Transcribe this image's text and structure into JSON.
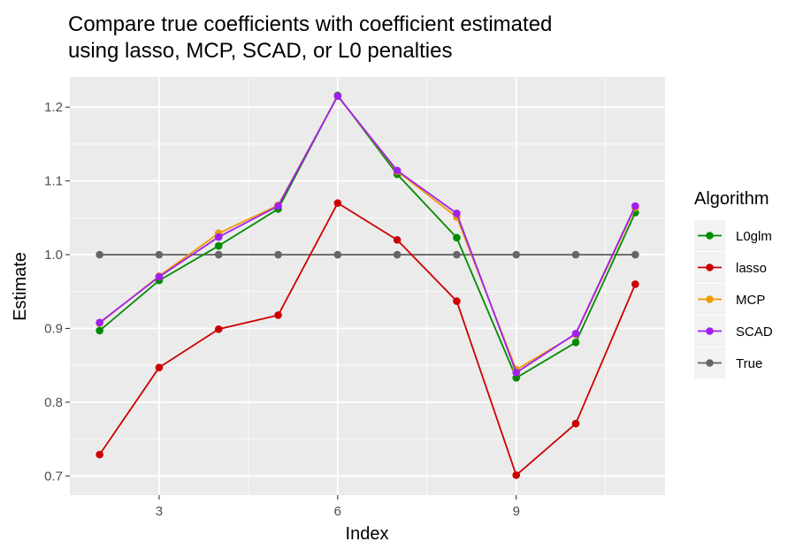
{
  "chart_data": {
    "type": "line",
    "title_lines": [
      "Compare true coefficients with coefficient estimated",
      "using lasso, MCP, SCAD, or L0 penalties"
    ],
    "xlabel": "Index",
    "ylabel": "Estimate",
    "xlim": [
      1.5,
      11.5
    ],
    "ylim": [
      0.674,
      1.241
    ],
    "x_ticks": [
      3,
      6,
      9
    ],
    "x_tick_labels": [
      "3",
      "6",
      "9"
    ],
    "y_ticks": [
      0.7,
      0.8,
      0.9,
      1.0,
      1.1,
      1.2
    ],
    "y_tick_labels": [
      "0.7",
      "0.8",
      "0.9",
      "1.0",
      "1.1",
      "1.2"
    ],
    "grid": true,
    "panel_background": "#ebebeb",
    "legend_title": "Algorithm",
    "legend_position": "right",
    "x": [
      2,
      3,
      4,
      5,
      6,
      7,
      8,
      9,
      10,
      11
    ],
    "series": [
      {
        "name": "L0glm",
        "color": "#008b00",
        "values": [
          0.897,
          0.965,
          1.012,
          1.062,
          1.216,
          1.109,
          1.023,
          0.833,
          0.881,
          1.057
        ]
      },
      {
        "name": "lasso",
        "color": "#cd0000",
        "values": [
          0.729,
          0.847,
          0.899,
          0.918,
          1.07,
          1.02,
          0.937,
          0.701,
          0.771,
          0.96
        ]
      },
      {
        "name": "MCP",
        "color": "#ee9a00",
        "values": [
          0.907,
          0.971,
          1.029,
          1.067,
          1.215,
          1.113,
          1.051,
          0.844,
          0.892,
          1.064
        ]
      },
      {
        "name": "SCAD",
        "color": "#a020f0",
        "values": [
          0.908,
          0.97,
          1.024,
          1.066,
          1.215,
          1.114,
          1.056,
          0.84,
          0.893,
          1.066
        ]
      },
      {
        "name": "True",
        "color": "#666666",
        "values": [
          1.0,
          1.0,
          1.0,
          1.0,
          1.0,
          1.0,
          1.0,
          1.0,
          1.0,
          1.0
        ]
      }
    ]
  }
}
